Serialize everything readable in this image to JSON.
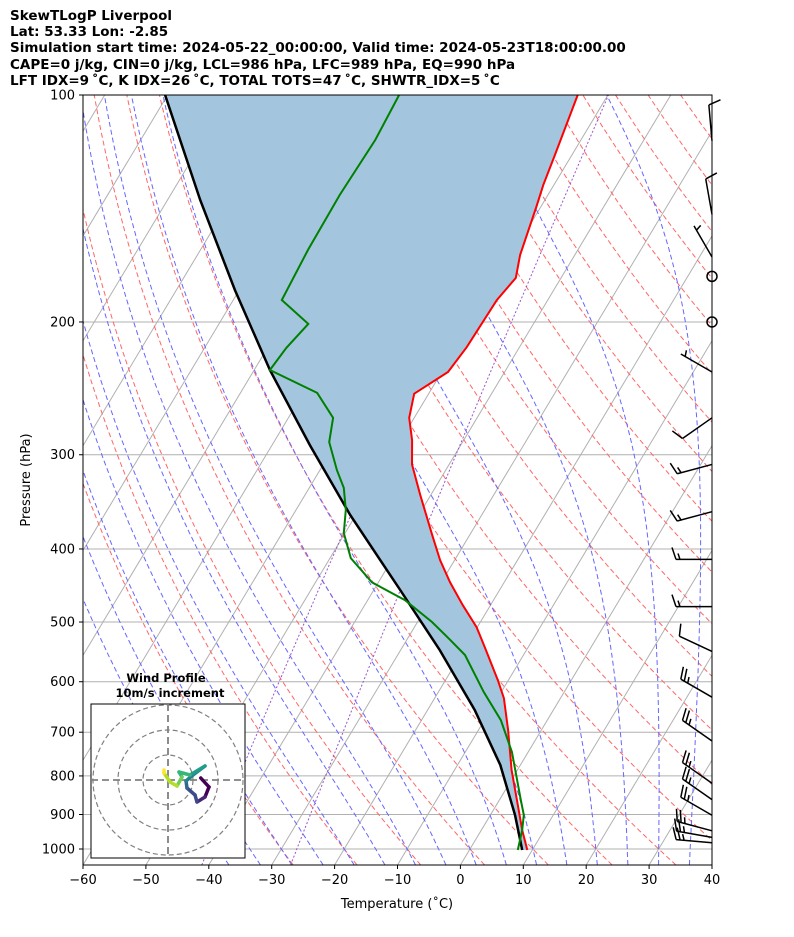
{
  "header": {
    "line1": "SkewTLogP Liverpool",
    "line2": "Lat: 53.33   Lon: -2.85",
    "line3": "Simulation start time: 2024-05-22_00:00:00, Valid time: 2024-05-23T18:00:00.00",
    "line4": "CAPE=0 j/kg, CIN=0 j/kg, LCL=986 hPa, LFC=989 hPa, EQ=990 hPa",
    "line5": "LFT IDX=9 ˚C, K IDX=26 ˚C, TOTAL TOTS=47 ˚C, SHWTR_IDX=5 ˚C"
  },
  "chart_data": {
    "type": "line",
    "subtype": "skew-T log-P",
    "xlabel": "Temperature (˚C)",
    "ylabel": "Pressure (hPa)",
    "xlim": [
      -60,
      40
    ],
    "ylim": [
      1050,
      100
    ],
    "xticks": [
      "−60",
      "−50",
      "−40",
      "−30",
      "−20",
      "−10",
      "0",
      "10",
      "20",
      "30",
      "40"
    ],
    "xtick_values": [
      -60,
      -50,
      -40,
      -30,
      -20,
      -10,
      0,
      10,
      20,
      30,
      40
    ],
    "yticks": [
      "100",
      "200",
      "300",
      "400",
      "500",
      "600",
      "700",
      "800",
      "900",
      "1000"
    ],
    "ytick_values": [
      100,
      200,
      300,
      400,
      500,
      600,
      700,
      800,
      900,
      1000
    ],
    "colors": {
      "temperature": "#ff0000",
      "dewpoint": "#008000",
      "parcel": "#000000",
      "fill": "#a3c6de",
      "dry": "#ff6666",
      "moist": "#6666ff",
      "mixing": "#9955cc",
      "grid": "#b0b0b0"
    },
    "series": [
      {
        "name": "Temperature",
        "p": [
          1003,
          944,
          874,
          786,
          695,
          631,
          597,
          540,
          508,
          475,
          443,
          414,
          383,
          339,
          309,
          287,
          268,
          249,
          233,
          216,
          187,
          174.8,
          163,
          140.8,
          131.6,
          120.1,
          100
        ],
        "T": [
          9.2,
          6.5,
          3.4,
          -0.9,
          -5.3,
          -9,
          -11.7,
          -16.9,
          -20.1,
          -24.4,
          -28.6,
          -32.3,
          -36,
          -41.7,
          -45.9,
          -48.2,
          -50.8,
          -52.3,
          -49,
          -48.4,
          -48.1,
          -47.2,
          -48.7,
          -50.7,
          -51.7,
          -52.7,
          -54.8
        ]
      },
      {
        "name": "Dewpoint",
        "p": [
          1003,
          944,
          901,
          861,
          798,
          743.5,
          674.5,
          619,
          553,
          528,
          500,
          467.6,
          443,
          411.3,
          381,
          355,
          332,
          314.4,
          288.6,
          268,
          248.4,
          231.6,
          216.5,
          201.2,
          187,
          160.5,
          135.7,
          114.7,
          100
        ],
        "T": [
          7.7,
          6.5,
          5.3,
          3.4,
          0.3,
          -2.6,
          -7.4,
          -12.8,
          -19.3,
          -23.1,
          -27.7,
          -34.1,
          -41,
          -46.7,
          -50.2,
          -52.1,
          -54.5,
          -57.3,
          -61.2,
          -62.9,
          -67.8,
          -77.5,
          -77,
          -75.8,
          -82.3,
          -82.9,
          -83.1,
          -82.7,
          -83.2
        ]
      },
      {
        "name": "Parcel",
        "p": [
          1003,
          901,
          773.8,
          654.2,
          544.6,
          453.4,
          360.6,
          291.2,
          231.6,
          181.4,
          137.8,
          100
        ],
        "T": [
          8.4,
          3.9,
          -3.2,
          -12.5,
          -23.8,
          -35.8,
          -50.9,
          -64,
          -77.5,
          -90.7,
          -104.8,
          -120.4
        ]
      }
    ],
    "wind_barbs": [
      {
        "p": 115,
        "dir": 355,
        "kt": 10
      },
      {
        "p": 144,
        "dir": 350,
        "kt": 10
      },
      {
        "p": 164,
        "dir": 330,
        "kt": 5
      },
      {
        "p": 174,
        "dir": 0,
        "kt": 0
      },
      {
        "p": 200,
        "dir": 0,
        "kt": 0
      },
      {
        "p": 233,
        "dir": 300,
        "kt": 5
      },
      {
        "p": 268,
        "dir": 235,
        "kt": 10
      },
      {
        "p": 309,
        "dir": 255,
        "kt": 15
      },
      {
        "p": 357,
        "dir": 255,
        "kt": 15
      },
      {
        "p": 413,
        "dir": 270,
        "kt": 15
      },
      {
        "p": 477,
        "dir": 270,
        "kt": 15
      },
      {
        "p": 547,
        "dir": 295,
        "kt": 10
      },
      {
        "p": 629,
        "dir": 300,
        "kt": 25
      },
      {
        "p": 719,
        "dir": 305,
        "kt": 25
      },
      {
        "p": 818,
        "dir": 305,
        "kt": 25
      },
      {
        "p": 860,
        "dir": 305,
        "kt": 25
      },
      {
        "p": 902,
        "dir": 300,
        "kt": 25
      },
      {
        "p": 946,
        "dir": 285,
        "kt": 25
      },
      {
        "p": 965,
        "dir": 280,
        "kt": 25
      },
      {
        "p": 981,
        "dir": 275,
        "kt": 25
      }
    ],
    "hodograph": {
      "title": "Wind Profile",
      "subtitle": "10m/s increment",
      "rings_ms": [
        10,
        20,
        30
      ],
      "u": [
        13.1,
        16.4,
        14.8,
        11.6,
        10.8,
        7.6,
        7.2,
        10,
        14.8,
        8.8,
        4.4,
        5.6,
        3.6,
        0.8,
        -1.6,
        -1.6
      ],
      "v": [
        0.8,
        -2.8,
        -6.8,
        -8.8,
        -6,
        -3.2,
        -0.4,
        2,
        5.6,
        2,
        3.2,
        1.2,
        -2.4,
        -0.8,
        2.8,
        4
      ]
    }
  }
}
